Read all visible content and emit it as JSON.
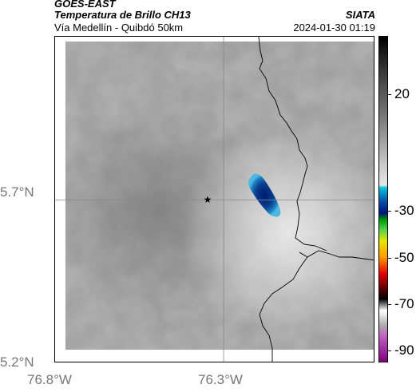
{
  "header": {
    "satellite": "GOES-EAST",
    "product": "Temperatura de Brillo CH13",
    "source": "SIATA",
    "route": "Vía Medellín - Quibdó 50km",
    "datetime": "2024-01-30 01:19"
  },
  "map": {
    "lat_labels": [
      "5.7°N",
      "5.2°N"
    ],
    "lon_labels": [
      "76.8°W",
      "76.3°W"
    ],
    "grid_lat": 5.7,
    "grid_lon": -76.3,
    "lat_range": [
      5.2,
      6.2
    ],
    "lon_range": [
      -76.8,
      -75.85
    ],
    "marker_icon": "star-icon",
    "colors": {
      "background_gray": "#9a9a9a",
      "cloud_core": "#0a3d8f",
      "cloud_edge": "#1e90c8",
      "border_line": "#000000",
      "grid_line": "#888888"
    }
  },
  "colorbar": {
    "labels": [
      "20",
      "-30",
      "-50",
      "-70",
      "-90"
    ],
    "label_values": [
      20,
      -30,
      -50,
      -70,
      -90
    ],
    "range": [
      -95,
      45
    ],
    "stops": [
      {
        "value": 45,
        "color": "#000000"
      },
      {
        "value": 30,
        "color": "#3a3a3a"
      },
      {
        "value": 10,
        "color": "#7a7a7a"
      },
      {
        "value": -10,
        "color": "#c8c8c8"
      },
      {
        "value": -19,
        "color": "#e6e6e6"
      },
      {
        "value": -20,
        "color": "#00c8e0"
      },
      {
        "value": -25,
        "color": "#0a5fb0"
      },
      {
        "value": -31,
        "color": "#00137a"
      },
      {
        "value": -34,
        "color": "#00a000"
      },
      {
        "value": -38,
        "color": "#50d050"
      },
      {
        "value": -43,
        "color": "#e6e600"
      },
      {
        "value": -50,
        "color": "#ff9900"
      },
      {
        "value": -57,
        "color": "#e60000"
      },
      {
        "value": -63,
        "color": "#6a0000"
      },
      {
        "value": -68,
        "color": "#000000"
      },
      {
        "value": -73,
        "color": "#ffffff"
      },
      {
        "value": -79,
        "color": "#b0b0b0"
      },
      {
        "value": -84,
        "color": "#c060c0"
      },
      {
        "value": -95,
        "color": "#800080"
      }
    ]
  }
}
